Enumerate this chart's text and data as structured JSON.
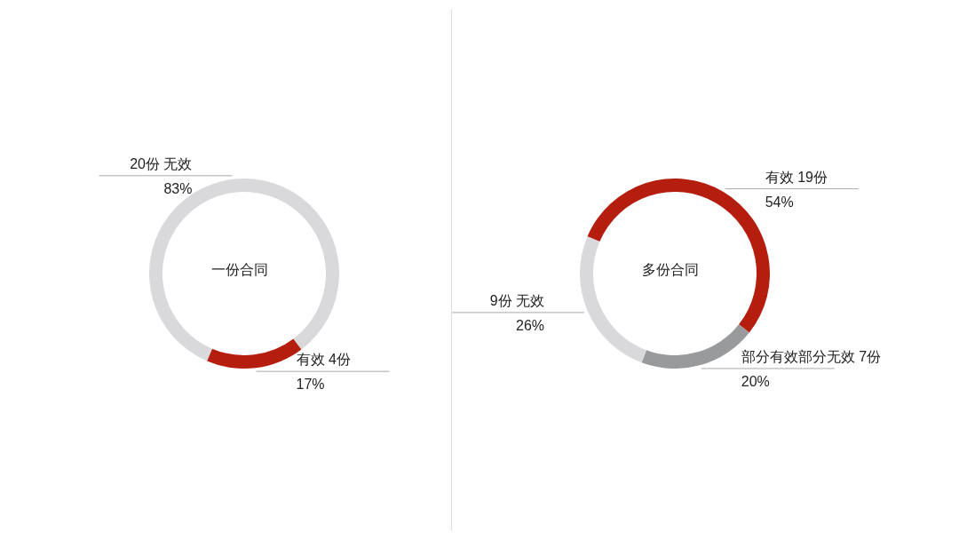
{
  "chart_data": [
    {
      "type": "donut",
      "title": "一份合同",
      "categories": [
        "无效",
        "有效"
      ],
      "values": [
        20,
        4
      ],
      "value_labels": [
        "20份",
        "4份"
      ],
      "annotations": [
        "83%",
        "17%"
      ],
      "colors": [
        "#d9d9db",
        "#b51e0e"
      ]
    },
    {
      "type": "donut",
      "title": "多份合同",
      "categories": [
        "有效",
        "部分有效部分无效",
        "无效"
      ],
      "values": [
        19,
        7,
        9
      ],
      "value_labels": [
        "19份",
        "7份",
        "9份"
      ],
      "annotations": [
        "54%",
        "20%",
        "26%"
      ],
      "colors": [
        "#b51e0e",
        "#999a9c",
        "#d9d9db"
      ]
    }
  ]
}
